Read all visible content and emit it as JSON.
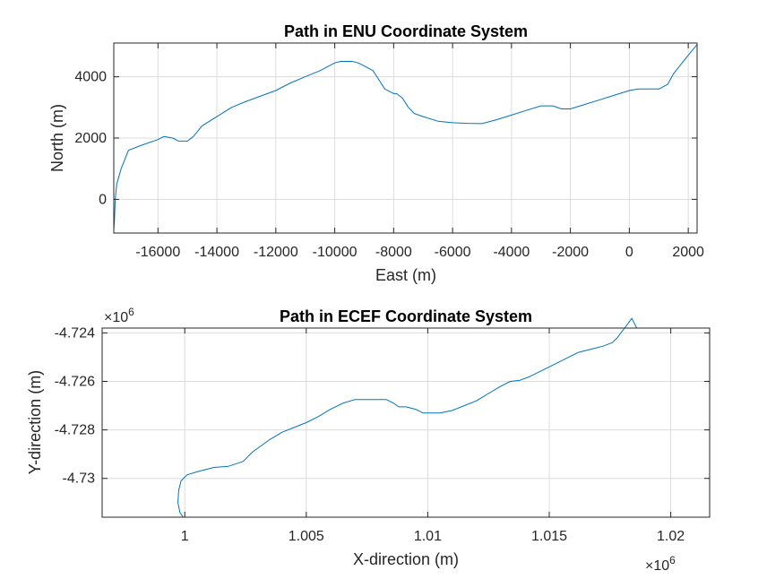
{
  "colors": {
    "series": "#0072BD",
    "grid": "#dcdcdc",
    "axis": "#262626"
  },
  "chart_data": [
    {
      "type": "line",
      "title": "Path in ENU Coordinate System",
      "xlabel": "East (m)",
      "ylabel": "North (m)",
      "xlim": [
        -17500,
        2300
      ],
      "ylim": [
        -1100,
        5100
      ],
      "xticks": [
        -16000,
        -14000,
        -12000,
        -10000,
        -8000,
        -6000,
        -4000,
        -2000,
        0,
        2000
      ],
      "xtick_labels": [
        "-16000",
        "-14000",
        "-12000",
        "-10000",
        "-8000",
        "-6000",
        "-4000",
        "-2000",
        "0",
        "2000"
      ],
      "yticks": [
        0,
        2000,
        4000
      ],
      "ytick_labels": [
        "0",
        "2000",
        "4000"
      ],
      "grid": true,
      "x": [
        -17500,
        -17480,
        -17450,
        -17400,
        -17250,
        -17000,
        -16600,
        -16000,
        -15800,
        -15500,
        -15300,
        -15000,
        -14800,
        -14500,
        -14000,
        -13500,
        -13000,
        -12000,
        -11500,
        -11000,
        -10500,
        -10000,
        -9800,
        -9600,
        -9400,
        -9200,
        -9000,
        -8700,
        -8500,
        -8300,
        -8100,
        -8000,
        -7900,
        -7700,
        -7500,
        -7300,
        -7000,
        -6500,
        -6000,
        -5500,
        -5000,
        -4500,
        -4000,
        -3500,
        -3000,
        -2600,
        -2300,
        -2000,
        -1500,
        -1000,
        -500,
        0,
        300,
        600,
        1000,
        1300,
        1500,
        2000,
        2300
      ],
      "y": [
        -1000,
        -700,
        0,
        500,
        1000,
        1600,
        1750,
        1950,
        2050,
        2000,
        1900,
        1900,
        2050,
        2400,
        2700,
        3000,
        3200,
        3550,
        3800,
        4000,
        4200,
        4450,
        4500,
        4500,
        4500,
        4450,
        4350,
        4200,
        3900,
        3600,
        3500,
        3450,
        3450,
        3300,
        3000,
        2800,
        2700,
        2550,
        2500,
        2480,
        2470,
        2600,
        2750,
        2900,
        3050,
        3050,
        2950,
        2950,
        3100,
        3250,
        3400,
        3550,
        3600,
        3600,
        3600,
        3750,
        4100,
        4700,
        5050
      ]
    },
    {
      "type": "line",
      "title": "Path in ECEF Coordinate System",
      "xlabel": "X-direction (m)",
      "ylabel": "Y-direction (m)",
      "x_exponent": "6",
      "y_exponent": "6",
      "xlim": [
        0.9966,
        1.0216
      ],
      "ylim": [
        -4.7316,
        -4.7238
      ],
      "xticks": [
        1.0,
        1.005,
        1.01,
        1.015,
        1.02
      ],
      "xtick_labels": [
        "1",
        "1.005",
        "1.01",
        "1.015",
        "1.02"
      ],
      "yticks": [
        -4.73,
        -4.728,
        -4.726,
        -4.724
      ],
      "ytick_labels": [
        "-4.73",
        "-4.728",
        "-4.726",
        "-4.724"
      ],
      "grid": true,
      "x": [
        0.99993,
        0.9998,
        0.99972,
        0.99975,
        0.99985,
        1.0001,
        1.0006,
        1.0012,
        1.0018,
        1.0024,
        1.0028,
        1.0035,
        1.004,
        1.0045,
        1.005,
        1.0055,
        1.006,
        1.0065,
        1.007,
        1.0076,
        1.008,
        1.0083,
        1.0086,
        1.0088,
        1.0091,
        1.0095,
        1.0098,
        1.01,
        1.0105,
        1.011,
        1.0115,
        1.012,
        1.0125,
        1.013,
        1.0134,
        1.0138,
        1.0142,
        1.0146,
        1.015,
        1.0156,
        1.0162,
        1.0168,
        1.0172,
        1.0176,
        1.0178,
        1.0181,
        1.0184,
        1.0186
      ],
      "y": [
        -4.7316,
        -4.7314,
        -4.731,
        -4.7305,
        -4.7301,
        -4.72985,
        -4.7297,
        -4.72955,
        -4.7295,
        -4.7293,
        -4.7289,
        -4.7284,
        -4.7281,
        -4.7279,
        -4.7277,
        -4.72745,
        -4.72715,
        -4.7269,
        -4.72675,
        -4.72675,
        -4.72675,
        -4.72675,
        -4.7269,
        -4.72705,
        -4.72705,
        -4.72715,
        -4.7273,
        -4.7273,
        -4.7273,
        -4.7272,
        -4.727,
        -4.7268,
        -4.7265,
        -4.7262,
        -4.726,
        -4.72595,
        -4.7258,
        -4.7256,
        -4.7254,
        -4.7251,
        -4.7248,
        -4.72465,
        -4.72455,
        -4.7244,
        -4.7242,
        -4.7238,
        -4.7234,
        -4.7238
      ]
    }
  ]
}
